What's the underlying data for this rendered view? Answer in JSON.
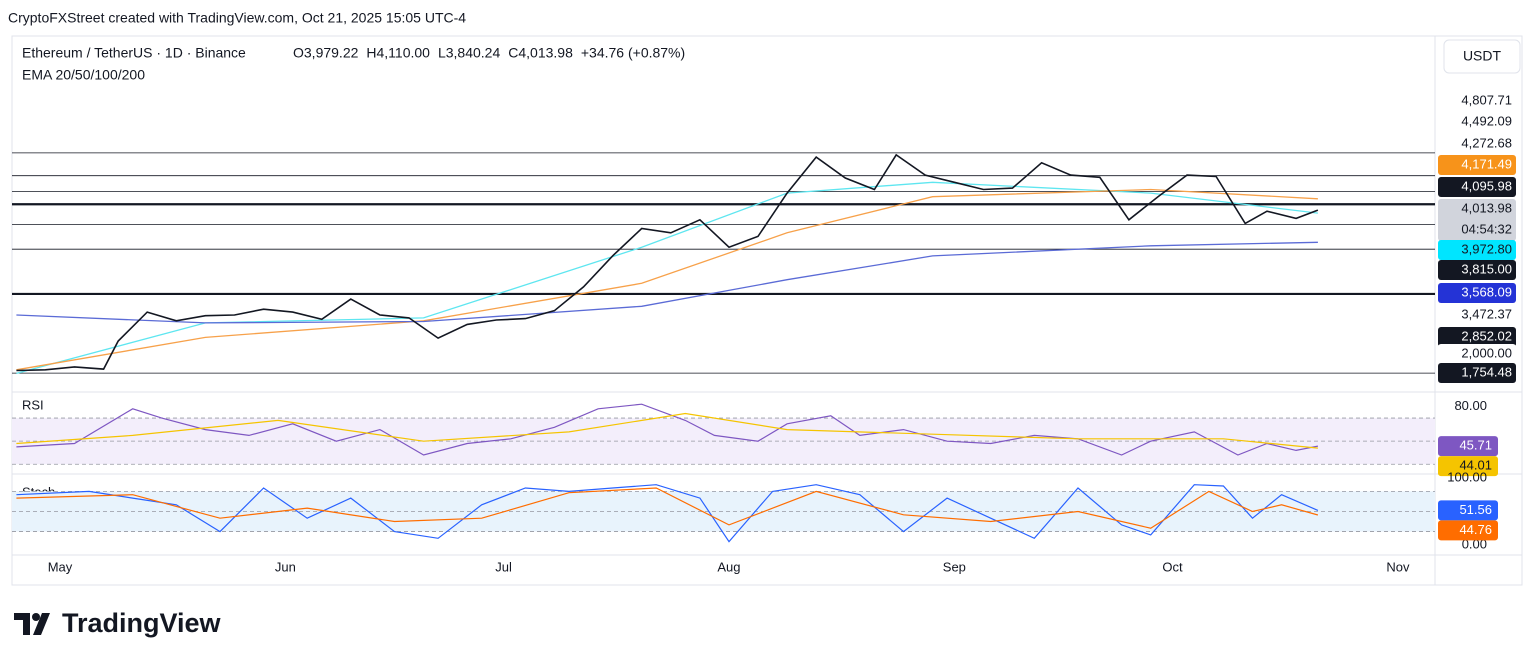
{
  "chart_data": {
    "type": "line",
    "attribution": "CryptoFXStreet created with TradingView.com, Oct 21, 2025 15:05 UTC-4",
    "symbol": "Ethereum / TetherUS · 1D · Binance",
    "ohlc": [
      "O3,979.22",
      "H4,110.00",
      "L3,840.24",
      "C4,013.98",
      "+34.76 (+0.87%)"
    ],
    "indicator_label": "EMA 20/50/100/200",
    "currency": "USDT",
    "countdown": "04:54:32",
    "brand": "TradingView",
    "xlim": [
      -6.6,
      189.1
    ],
    "xticks": [
      {
        "value": 0,
        "label": "May"
      },
      {
        "value": 31,
        "label": "Jun"
      },
      {
        "value": 61,
        "label": "Jul"
      },
      {
        "value": 92,
        "label": "Aug"
      },
      {
        "value": 123,
        "label": "Sep"
      },
      {
        "value": 153,
        "label": "Oct"
      },
      {
        "value": 184,
        "label": "Nov"
      }
    ],
    "ylim": [
      1520,
      5680
    ],
    "price": {
      "color": "#131722",
      "x": [
        -6,
        -2,
        2,
        6,
        8,
        12,
        16,
        20,
        24,
        28,
        32,
        36,
        40,
        44,
        48,
        52,
        56,
        60,
        64,
        68,
        72,
        76,
        80,
        84,
        88,
        92,
        96,
        100,
        104,
        108,
        112,
        115,
        119,
        123,
        127,
        131,
        135,
        139,
        143,
        147,
        151,
        155,
        159,
        163,
        166,
        170,
        173
      ],
      "values": [
        1790,
        1800,
        1840,
        1810,
        2200,
        2600,
        2480,
        2550,
        2560,
        2640,
        2600,
        2500,
        2780,
        2560,
        2520,
        2240,
        2430,
        2490,
        2510,
        2620,
        2950,
        3380,
        3760,
        3700,
        3880,
        3500,
        3650,
        4250,
        4750,
        4460,
        4300,
        4780,
        4500,
        4400,
        4300,
        4320,
        4670,
        4500,
        4470,
        3880,
        4200,
        4500,
        4480,
        3830,
        4000,
        3900,
        4013.98
      ]
    },
    "ema": [
      {
        "color": "#5ee6f0",
        "x": [
          -6,
          20,
          50,
          80,
          100,
          120,
          150,
          173
        ],
        "values": [
          1750,
          2450,
          2520,
          3500,
          4250,
          4400,
          4250,
          3972.8
        ]
      },
      {
        "color": "#f7a14a",
        "x": [
          -6,
          20,
          50,
          80,
          100,
          120,
          150,
          173
        ],
        "values": [
          1800,
          2250,
          2480,
          3000,
          3700,
          4200,
          4300,
          4171.49
        ]
      },
      {
        "color": "#5b6bd6",
        "x": [
          -6,
          20,
          50,
          80,
          100,
          120,
          150,
          173
        ],
        "values": [
          2560,
          2450,
          2470,
          2680,
          3050,
          3380,
          3520,
          3568.09
        ]
      }
    ],
    "badges": [
      {
        "value": 4807.71,
        "label": "4,807.71",
        "bg": "#ffffff",
        "fg": "#131722",
        "level": true
      },
      {
        "value": 4492.09,
        "label": "4,492.09",
        "bg": "#ffffff",
        "fg": "#131722",
        "level": true
      },
      {
        "value": 4272.68,
        "label": "4,272.68",
        "bg": "#ffffff",
        "fg": "#131722",
        "level": true
      },
      {
        "value": 4171.49,
        "label": "4,171.49",
        "bg": "#f7931a",
        "fg": "#ffffff",
        "level": false
      },
      {
        "value": 4095.98,
        "label": "4,095.98",
        "bg": "#131722",
        "fg": "#ffffff",
        "level": true,
        "thick": true
      },
      {
        "value": 4013.98,
        "label": "4,013.98",
        "bg": "#d1d4dc",
        "fg": "#131722",
        "level": false
      },
      {
        "value": 3972.8,
        "label": "3,972.80",
        "bg": "#00e5ff",
        "fg": "#131722",
        "level": false
      },
      {
        "value": 3815.0,
        "label": "3,815.00",
        "bg": "#131722",
        "fg": "#ffffff",
        "level": true
      },
      {
        "value": 3568.09,
        "label": "3,568.09",
        "bg": "#2433d6",
        "fg": "#ffffff",
        "level": false
      },
      {
        "value": 3472.37,
        "label": "3,472.37",
        "bg": "#ffffff",
        "fg": "#131722",
        "level": true
      },
      {
        "value": 2852.02,
        "label": "2,852.02",
        "bg": "#131722",
        "fg": "#ffffff",
        "level": true,
        "thick": true
      },
      {
        "value": 2000,
        "label": "2,000.00",
        "bg": "#ffffff",
        "fg": "#131722",
        "level": false
      },
      {
        "value": 1754.48,
        "label": "1,754.48",
        "bg": "#131722",
        "fg": "#ffffff",
        "level": true
      }
    ],
    "rsi": {
      "label": "RSI",
      "ylim": [
        25,
        90
      ],
      "bands": [
        70,
        50,
        30
      ],
      "yticks": [
        {
          "value": 80,
          "label": "80.00"
        }
      ],
      "series": [
        {
          "color": "#7e57c2",
          "x": [
            -6,
            2,
            10,
            14,
            20,
            26,
            32,
            38,
            44,
            50,
            56,
            62,
            68,
            74,
            80,
            86,
            90,
            96,
            100,
            106,
            110,
            116,
            122,
            128,
            134,
            140,
            146,
            150,
            156,
            162,
            166,
            170,
            173
          ],
          "values": [
            45,
            48,
            78,
            70,
            60,
            55,
            65,
            50,
            60,
            38,
            48,
            52,
            62,
            78,
            82,
            68,
            55,
            50,
            65,
            72,
            55,
            60,
            50,
            48,
            55,
            52,
            38,
            50,
            58,
            38,
            48,
            42,
            45.71
          ]
        },
        {
          "color": "#f5c400",
          "x": [
            -6,
            10,
            30,
            50,
            70,
            86,
            100,
            120,
            140,
            160,
            173
          ],
          "values": [
            48,
            55,
            68,
            50,
            58,
            74,
            60,
            56,
            52,
            52,
            44.01
          ]
        }
      ]
    },
    "stoch": {
      "label": "Stoch",
      "ylim": [
        -15,
        100
      ],
      "bands": [
        80,
        50,
        20
      ],
      "yticks": [
        {
          "value": 100,
          "label": "100.00"
        },
        {
          "value": 0,
          "label": "0.00"
        }
      ],
      "series": [
        {
          "color": "#2962ff",
          "x": [
            -6,
            4,
            10,
            16,
            22,
            28,
            34,
            40,
            46,
            52,
            58,
            64,
            70,
            76,
            82,
            88,
            92,
            98,
            104,
            110,
            116,
            122,
            128,
            134,
            140,
            146,
            150,
            156,
            160,
            164,
            168,
            173
          ],
          "values": [
            75,
            80,
            70,
            60,
            20,
            85,
            40,
            70,
            20,
            10,
            60,
            85,
            80,
            85,
            90,
            70,
            5,
            80,
            90,
            75,
            20,
            70,
            40,
            10,
            85,
            30,
            15,
            90,
            88,
            40,
            75,
            51.56
          ]
        },
        {
          "color": "#ff6d00",
          "x": [
            -6,
            10,
            22,
            34,
            46,
            58,
            70,
            82,
            92,
            104,
            116,
            128,
            140,
            150,
            158,
            164,
            168,
            173
          ],
          "values": [
            70,
            75,
            40,
            55,
            35,
            40,
            78,
            85,
            30,
            80,
            45,
            35,
            50,
            25,
            80,
            50,
            60,
            44.76
          ]
        }
      ]
    }
  }
}
